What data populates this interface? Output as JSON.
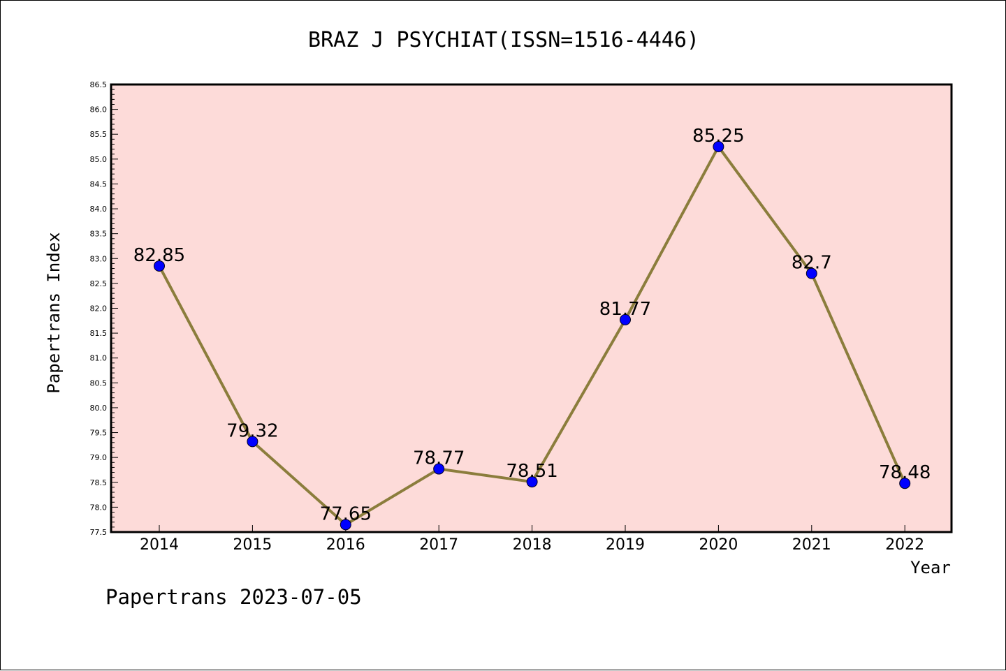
{
  "chart_data": {
    "type": "line",
    "title": "BRAZ J PSYCHIAT(ISSN=1516-4446)",
    "xlabel": "Year",
    "ylabel": "Papertrans Index",
    "categories": [
      "2014",
      "2015",
      "2016",
      "2017",
      "2018",
      "2019",
      "2020",
      "2021",
      "2022"
    ],
    "series": [
      {
        "values": [
          82.85,
          79.32,
          77.65,
          78.77,
          78.51,
          81.77,
          85.25,
          82.7,
          78.48
        ],
        "labels": [
          "82.85",
          "79.32",
          "77.65",
          "78.77",
          "78.51",
          "81.77",
          "85.25",
          "82.7",
          "78.48"
        ]
      }
    ],
    "ylim": [
      77.5,
      86.5
    ],
    "yticks": [
      "77.5",
      "78.0",
      "78.5",
      "79.0",
      "79.5",
      "80.0",
      "80.5",
      "81.0",
      "81.5",
      "82.0",
      "82.5",
      "83.0",
      "83.5",
      "84.0",
      "84.5",
      "85.0",
      "85.5",
      "86.0",
      "86.5"
    ],
    "grid": false,
    "colors": {
      "plot_background": "#fddbd9",
      "line": "#8b7d3c",
      "marker": "#0000ff"
    }
  },
  "footer": "Papertrans 2023-07-05"
}
